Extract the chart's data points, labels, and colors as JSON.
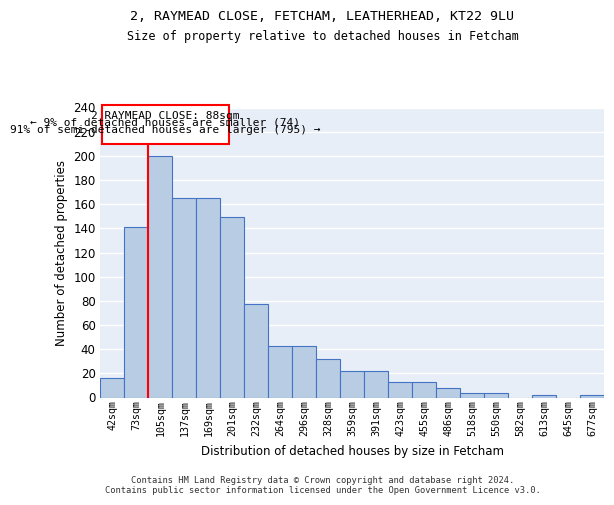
{
  "title1": "2, RAYMEAD CLOSE, FETCHAM, LEATHERHEAD, KT22 9LU",
  "title2": "Size of property relative to detached houses in Fetcham",
  "xlabel": "Distribution of detached houses by size in Fetcham",
  "ylabel": "Number of detached properties",
  "bar_values": [
    16,
    141,
    200,
    165,
    165,
    149,
    77,
    43,
    43,
    32,
    22,
    22,
    13,
    13,
    8,
    4,
    4,
    0,
    2,
    0,
    2
  ],
  "bar_labels": [
    "42sqm",
    "73sqm",
    "105sqm",
    "137sqm",
    "169sqm",
    "201sqm",
    "232sqm",
    "264sqm",
    "296sqm",
    "328sqm",
    "359sqm",
    "391sqm",
    "423sqm",
    "455sqm",
    "486sqm",
    "518sqm",
    "550sqm",
    "582sqm",
    "613sqm",
    "645sqm",
    "677sqm"
  ],
  "bar_color": "#b8cce4",
  "bar_edgecolor": "#4472c4",
  "background_color": "#e8eef7",
  "grid_color": "#ffffff",
  "red_line_x": 1.5,
  "annotation_line1": "2 RAYMEAD CLOSE: 88sqm",
  "annotation_line2": "← 9% of detached houses are smaller (74)",
  "annotation_line3": "91% of semi-detached houses are larger (795) →",
  "footer_text": "Contains HM Land Registry data © Crown copyright and database right 2024.\nContains public sector information licensed under the Open Government Licence v3.0.",
  "ylim": [
    0,
    240
  ],
  "yticks": [
    0,
    20,
    40,
    60,
    80,
    100,
    120,
    140,
    160,
    180,
    200,
    220,
    240
  ]
}
